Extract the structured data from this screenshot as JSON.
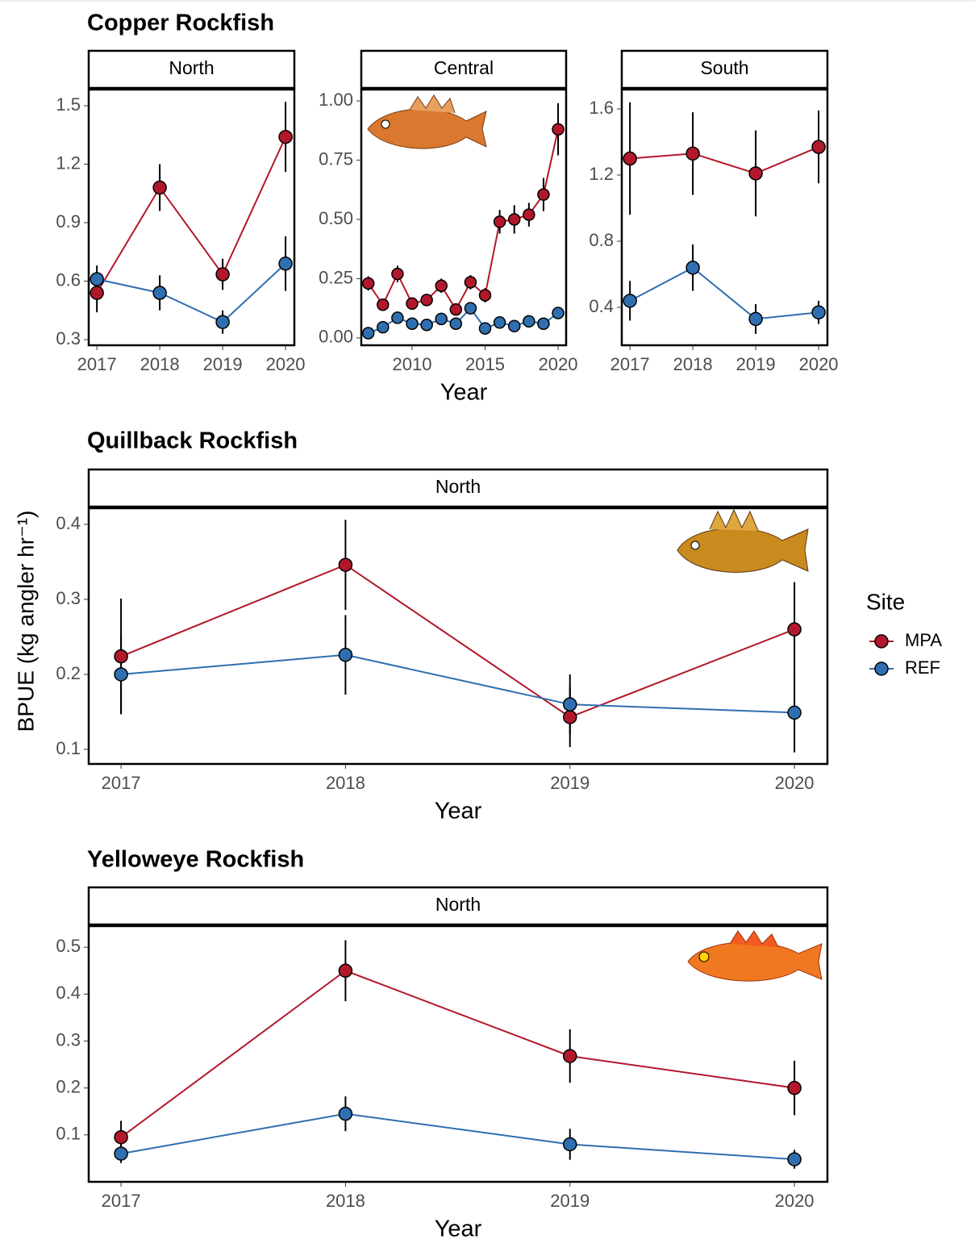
{
  "chart_data": [
    {
      "type": "line",
      "title": "Copper Rockfish",
      "facet": "North",
      "x": [
        2017,
        2018,
        2019,
        2020
      ],
      "xlim": [
        2016.87,
        2020.14
      ],
      "xticks": [
        2017,
        2018,
        2019,
        2020
      ],
      "ylim": [
        0.271,
        1.583
      ],
      "yticks": [
        0.3,
        0.6,
        0.9,
        1.2,
        1.5
      ],
      "series": [
        {
          "name": "MPA",
          "color": "#b2182b",
          "values": [
            0.54,
            1.08,
            0.635,
            1.34
          ],
          "errors": [
            0.1,
            0.12,
            0.08,
            0.18
          ]
        },
        {
          "name": "REF",
          "color": "#2f6fb0",
          "values": [
            0.61,
            0.54,
            0.39,
            0.69
          ],
          "errors": [
            0.07,
            0.09,
            0.06,
            0.14
          ]
        }
      ]
    },
    {
      "type": "line",
      "facet": "Central",
      "x_label": "Year",
      "x": [
        2007,
        2008,
        2009,
        2010,
        2011,
        2012,
        2013,
        2014,
        2015,
        2016,
        2017,
        2018,
        2019,
        2020
      ],
      "xlim": [
        2006.52,
        2020.55
      ],
      "xticks": [
        2010,
        2015,
        2020
      ],
      "ylim": [
        -0.031,
        1.048
      ],
      "yticks": [
        {
          "value": 0,
          "label": "0.00"
        },
        {
          "value": 0.25,
          "label": "0.25"
        },
        {
          "value": 0.5,
          "label": "0.50"
        },
        {
          "value": 0.75,
          "label": "0.75"
        },
        {
          "value": 1,
          "label": "1.00"
        }
      ],
      "series": [
        {
          "name": "MPA",
          "color": "#b2182b",
          "values": [
            0.23,
            0.14,
            0.27,
            0.145,
            0.16,
            0.22,
            0.12,
            0.235,
            0.18,
            0.49,
            0.5,
            0.52,
            0.605,
            0.88
          ],
          "errors": [
            0.03,
            0.02,
            0.035,
            0.02,
            0.02,
            0.03,
            0.02,
            0.03,
            0.03,
            0.05,
            0.06,
            0.05,
            0.07,
            0.11
          ]
        },
        {
          "name": "REF",
          "color": "#2f6fb0",
          "values": [
            0.02,
            0.045,
            0.085,
            0.06,
            0.055,
            0.08,
            0.06,
            0.125,
            0.04,
            0.065,
            0.05,
            0.07,
            0.06,
            0.105
          ],
          "errors": [
            0.01,
            0.015,
            0.02,
            0.015,
            0.015,
            0.02,
            0.015,
            0.025,
            0.015,
            0.02,
            0.015,
            0.02,
            0.02,
            0.025
          ]
        }
      ]
    },
    {
      "type": "line",
      "facet": "South",
      "x": [
        2017,
        2018,
        2019,
        2020
      ],
      "xlim": [
        2016.87,
        2020.14
      ],
      "xticks": [
        2017,
        2018,
        2019,
        2020
      ],
      "ylim": [
        0.171,
        1.717
      ],
      "yticks": [
        0.4,
        0.8,
        1.2,
        1.6
      ],
      "series": [
        {
          "name": "MPA",
          "color": "#b2182b",
          "values": [
            1.3,
            1.33,
            1.21,
            1.37
          ],
          "errors": [
            0.34,
            0.25,
            0.26,
            0.22
          ]
        },
        {
          "name": "REF",
          "color": "#2f6fb0",
          "values": [
            0.44,
            0.64,
            0.33,
            0.37
          ],
          "errors": [
            0.12,
            0.14,
            0.09,
            0.07
          ]
        }
      ]
    },
    {
      "type": "line",
      "title": "Quillback Rockfish",
      "facet": "North",
      "x_label": "Year",
      "y_label": "BPUE (kg angler hr⁻¹)",
      "legend_title": "Site",
      "x": [
        2017,
        2018,
        2019,
        2020
      ],
      "xlim": [
        2016.856,
        2020.147
      ],
      "xticks": [
        2017,
        2018,
        2019,
        2020
      ],
      "ylim": [
        0.0806,
        0.4215
      ],
      "yticks": [
        0.1,
        0.2,
        0.3,
        0.4
      ],
      "series": [
        {
          "name": "MPA",
          "color": "#b2182b",
          "values": [
            0.224,
            0.346,
            0.143,
            0.26
          ],
          "errors": [
            0.077,
            0.06,
            0.04,
            0.063
          ]
        },
        {
          "name": "REF",
          "color": "#2f6fb0",
          "values": [
            0.2,
            0.226,
            0.16,
            0.149
          ],
          "errors": [
            0.053,
            0.053,
            0.04,
            0.053
          ]
        }
      ]
    },
    {
      "type": "line",
      "title": "Yelloweye Rockfish",
      "facet": "North",
      "x_label": "Year",
      "x": [
        2017,
        2018,
        2019,
        2020
      ],
      "xlim": [
        2016.856,
        2020.147
      ],
      "xticks": [
        2017,
        2018,
        2019,
        2020
      ],
      "ylim": [
        0,
        0.545
      ],
      "yticks": [
        0.1,
        0.2,
        0.3,
        0.4,
        0.5
      ],
      "series": [
        {
          "name": "MPA",
          "color": "#b2182b",
          "values": [
            0.095,
            0.45,
            0.268,
            0.2
          ],
          "errors": [
            0.035,
            0.065,
            0.057,
            0.058
          ]
        },
        {
          "name": "REF",
          "color": "#2f6fb0",
          "values": [
            0.06,
            0.145,
            0.08,
            0.048
          ],
          "errors": [
            0.02,
            0.037,
            0.033,
            0.02
          ]
        }
      ]
    }
  ]
}
